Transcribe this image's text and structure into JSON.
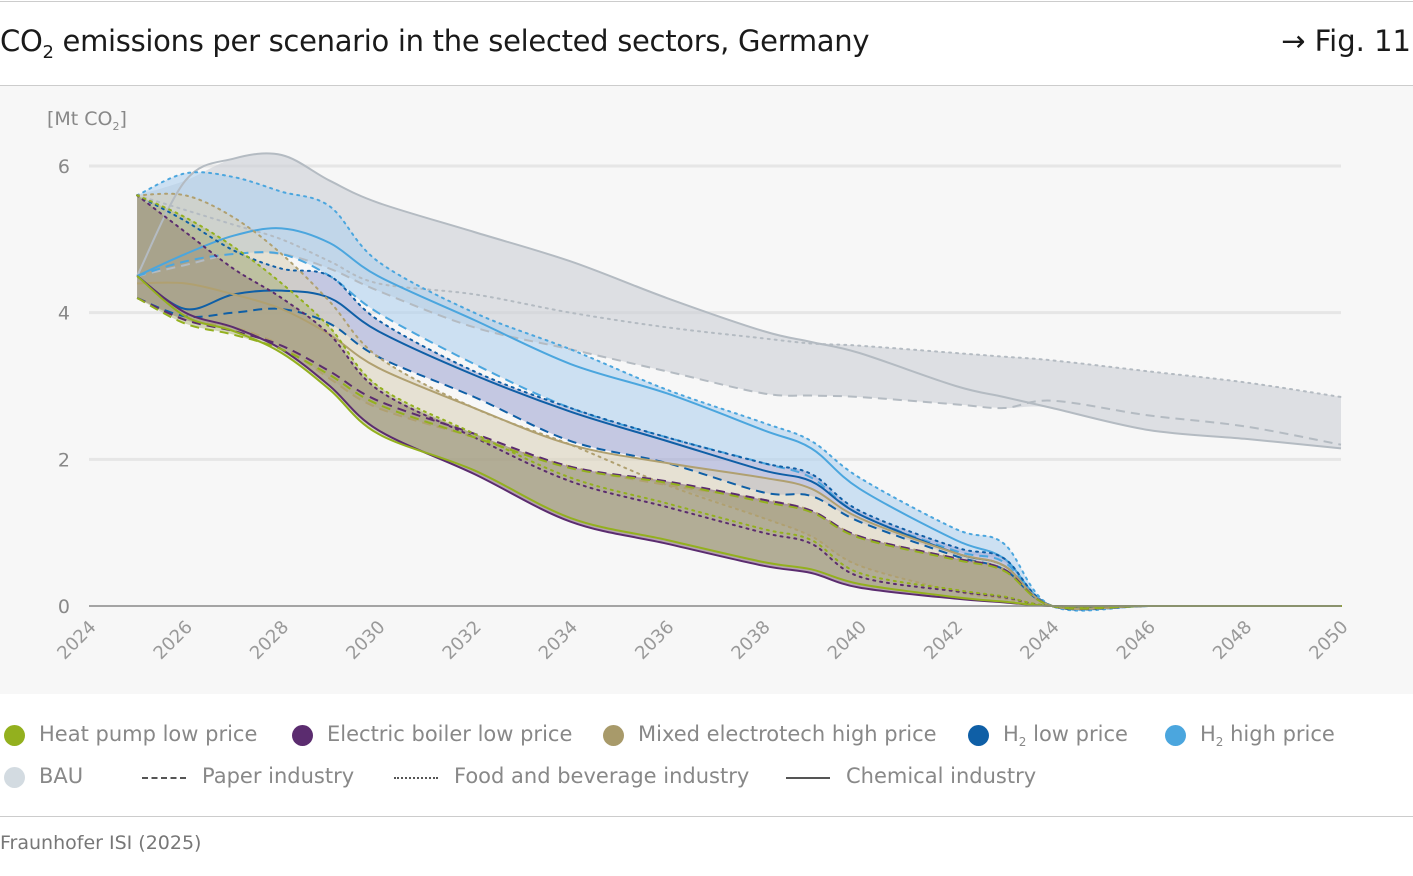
{
  "header": {
    "title_pre": "CO",
    "title_sub": "2",
    "title_post": " emissions per scenario in the selected sectors, Germany",
    "figure_ref": "→ Fig. 11"
  },
  "source": "Fraunhofer ISI (2025)",
  "chart_data": {
    "type": "area",
    "title": "CO2 emissions per scenario in the selected sectors, Germany",
    "ylabel": "[Mt CO2]",
    "ylabel_pre": "[Mt CO",
    "ylabel_sub": "2",
    "ylabel_post": "]",
    "xlim": [
      2024,
      2050
    ],
    "ylim": [
      0,
      6.6
    ],
    "xticks": [
      "2024",
      "2026",
      "2028",
      "2030",
      "2032",
      "2034",
      "2036",
      "2038",
      "2040",
      "2042",
      "2044",
      "2046",
      "2048",
      "2050"
    ],
    "yticks": [
      "0",
      "2",
      "4",
      "6"
    ],
    "grid": true,
    "years": [
      2025,
      2026,
      2027,
      2028,
      2029,
      2030,
      2032,
      2034,
      2036,
      2038,
      2039,
      2040,
      2042,
      2043,
      2044,
      2046,
      2048,
      2050
    ],
    "scenarios": [
      {
        "name": "BAU",
        "color": "#d3dbe1",
        "line": "#b4bbc2",
        "fill": "#c8ccd3",
        "chemical": [
          4.5,
          5.8,
          6.1,
          6.15,
          5.8,
          5.5,
          5.1,
          4.7,
          4.2,
          3.75,
          3.6,
          3.45,
          3.0,
          2.85,
          2.7,
          2.4,
          2.28,
          2.15
        ],
        "food": [
          5.6,
          5.4,
          5.2,
          5.0,
          4.7,
          4.4,
          4.25,
          4.0,
          3.8,
          3.65,
          3.58,
          3.55,
          3.45,
          3.4,
          3.35,
          3.2,
          3.05,
          2.85
        ],
        "paper": [
          4.5,
          4.65,
          4.8,
          4.8,
          4.6,
          4.3,
          3.8,
          3.5,
          3.2,
          2.9,
          2.87,
          2.85,
          2.75,
          2.7,
          2.8,
          2.6,
          2.45,
          2.2
        ]
      },
      {
        "name": "H2 high price",
        "color": "#4ba6de",
        "line": "#4ba6de",
        "fill": "#a9cdee",
        "chemical": [
          4.5,
          4.8,
          5.05,
          5.15,
          4.95,
          4.5,
          3.9,
          3.3,
          2.9,
          2.4,
          2.15,
          1.6,
          0.9,
          0.65,
          0,
          0,
          0,
          0
        ],
        "food": [
          5.6,
          5.9,
          5.85,
          5.65,
          5.45,
          4.7,
          4.0,
          3.5,
          2.95,
          2.5,
          2.25,
          1.75,
          1.05,
          0.85,
          0,
          0,
          0,
          0
        ],
        "paper": [
          4.5,
          4.7,
          4.8,
          4.8,
          4.5,
          4.0,
          3.3,
          2.7,
          2.3,
          1.95,
          1.75,
          1.25,
          0.75,
          0.6,
          0,
          0,
          0,
          0
        ]
      },
      {
        "name": "H2 low price",
        "color": "#0f5fa6",
        "line": "#0f5fa6",
        "fill": "#9aa3d2",
        "chemical": [
          4.5,
          4.05,
          4.25,
          4.3,
          4.2,
          3.75,
          3.15,
          2.65,
          2.25,
          1.85,
          1.7,
          1.25,
          0.72,
          0.55,
          0,
          0,
          0,
          0
        ],
        "food": [
          5.6,
          5.25,
          4.85,
          4.6,
          4.5,
          3.9,
          3.2,
          2.7,
          2.3,
          1.95,
          1.8,
          1.3,
          0.8,
          0.65,
          0,
          0,
          0,
          0
        ],
        "paper": [
          4.2,
          3.95,
          4.0,
          4.05,
          3.85,
          3.4,
          2.85,
          2.25,
          1.95,
          1.55,
          1.5,
          1.15,
          0.68,
          0.5,
          0,
          0,
          0,
          0
        ]
      },
      {
        "name": "Mixed electrotech high price",
        "color": "#a89a6a",
        "line": "#b0a070",
        "fill": "#d8cfb6",
        "chemical": [
          4.4,
          4.4,
          4.25,
          4.05,
          3.7,
          3.25,
          2.7,
          2.2,
          1.95,
          1.75,
          1.6,
          1.2,
          0.72,
          0.55,
          0,
          0,
          0,
          0
        ],
        "food": [
          5.6,
          5.6,
          5.3,
          4.8,
          4.15,
          3.4,
          2.7,
          2.2,
          1.65,
          1.2,
          0.95,
          0.55,
          0.2,
          0.1,
          0,
          0,
          0,
          0
        ],
        "paper": [
          4.2,
          3.9,
          3.8,
          3.55,
          3.1,
          2.7,
          2.3,
          1.9,
          1.65,
          1.45,
          1.3,
          0.95,
          0.65,
          0.5,
          0,
          0,
          0,
          0
        ]
      },
      {
        "name": "Electric boiler low price",
        "color": "#5b2c6f",
        "line": "#5b2c6f",
        "fill": "#7d5a78",
        "chemical": [
          4.5,
          4.0,
          3.8,
          3.5,
          3.0,
          2.4,
          1.8,
          1.15,
          0.85,
          0.55,
          0.45,
          0.25,
          0.1,
          0.05,
          0,
          0,
          0,
          0
        ],
        "food": [
          5.6,
          5.1,
          4.6,
          4.2,
          3.7,
          2.95,
          2.3,
          1.7,
          1.35,
          1.0,
          0.85,
          0.4,
          0.2,
          0.12,
          0,
          0,
          0,
          0
        ],
        "paper": [
          4.2,
          3.9,
          3.75,
          3.55,
          3.2,
          2.8,
          2.35,
          1.9,
          1.7,
          1.45,
          1.3,
          0.95,
          0.65,
          0.5,
          0,
          0,
          0,
          0
        ]
      },
      {
        "name": "Heat pump low price",
        "color": "#93b01e",
        "line": "#93b01e",
        "fill": "#b0b880",
        "chemical": [
          4.5,
          3.95,
          3.75,
          3.45,
          2.95,
          2.35,
          1.85,
          1.2,
          0.9,
          0.6,
          0.5,
          0.3,
          0.12,
          0.06,
          0,
          0,
          0,
          0
        ],
        "food": [
          5.6,
          5.3,
          4.9,
          4.4,
          3.8,
          3.0,
          2.35,
          1.75,
          1.4,
          1.05,
          0.9,
          0.45,
          0.22,
          0.13,
          0,
          0,
          0,
          0
        ],
        "paper": [
          4.2,
          3.85,
          3.7,
          3.5,
          3.15,
          2.75,
          2.3,
          1.88,
          1.68,
          1.42,
          1.28,
          0.93,
          0.63,
          0.48,
          0,
          0,
          0,
          0
        ]
      }
    ],
    "legend": [
      {
        "label_pre": "Heat pump low price",
        "label_sub": "",
        "label_post": "",
        "color": "#93b01e",
        "kind": "dot"
      },
      {
        "label_pre": "Electric boiler low price",
        "label_sub": "",
        "label_post": "",
        "color": "#5b2c6f",
        "kind": "dot"
      },
      {
        "label_pre": "Mixed electrotech high price",
        "label_sub": "",
        "label_post": "",
        "color": "#a89a6a",
        "kind": "dot"
      },
      {
        "label_pre": "H",
        "label_sub": "2",
        "label_post": " low price",
        "color": "#0f5fa6",
        "kind": "dot"
      },
      {
        "label_pre": "H",
        "label_sub": "2",
        "label_post": " high price",
        "color": "#4ba6de",
        "kind": "dot"
      },
      {
        "label_pre": "BAU",
        "label_sub": "",
        "label_post": "",
        "color": "#d3dbe1",
        "kind": "dot"
      },
      {
        "label_pre": "Paper industry",
        "label_sub": "",
        "label_post": "",
        "color": "#555",
        "kind": "dashed"
      },
      {
        "label_pre": "Food and beverage industry",
        "label_sub": "",
        "label_post": "",
        "color": "#555",
        "kind": "dotted"
      },
      {
        "label_pre": "Chemical industry",
        "label_sub": "",
        "label_post": "",
        "color": "#555",
        "kind": "solid"
      }
    ],
    "legend_placement": "bottom"
  }
}
